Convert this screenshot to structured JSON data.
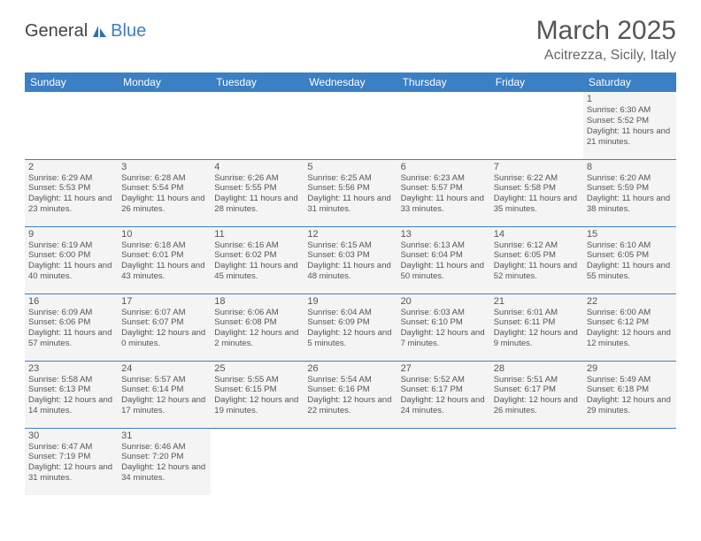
{
  "logo": {
    "text1": "General",
    "text2": "Blue"
  },
  "title": "March 2025",
  "location": "Acitrezza, Sicily, Italy",
  "colors": {
    "header_bg": "#3b7fc4",
    "header_fg": "#ffffff",
    "cell_bg": "#f4f4f4",
    "border": "#3b7fc4",
    "text": "#555555"
  },
  "day_headers": [
    "Sunday",
    "Monday",
    "Tuesday",
    "Wednesday",
    "Thursday",
    "Friday",
    "Saturday"
  ],
  "weeks": [
    [
      null,
      null,
      null,
      null,
      null,
      null,
      {
        "n": "1",
        "sr": "Sunrise: 6:30 AM",
        "ss": "Sunset: 5:52 PM",
        "dl": "Daylight: 11 hours and 21 minutes."
      }
    ],
    [
      {
        "n": "2",
        "sr": "Sunrise: 6:29 AM",
        "ss": "Sunset: 5:53 PM",
        "dl": "Daylight: 11 hours and 23 minutes."
      },
      {
        "n": "3",
        "sr": "Sunrise: 6:28 AM",
        "ss": "Sunset: 5:54 PM",
        "dl": "Daylight: 11 hours and 26 minutes."
      },
      {
        "n": "4",
        "sr": "Sunrise: 6:26 AM",
        "ss": "Sunset: 5:55 PM",
        "dl": "Daylight: 11 hours and 28 minutes."
      },
      {
        "n": "5",
        "sr": "Sunrise: 6:25 AM",
        "ss": "Sunset: 5:56 PM",
        "dl": "Daylight: 11 hours and 31 minutes."
      },
      {
        "n": "6",
        "sr": "Sunrise: 6:23 AM",
        "ss": "Sunset: 5:57 PM",
        "dl": "Daylight: 11 hours and 33 minutes."
      },
      {
        "n": "7",
        "sr": "Sunrise: 6:22 AM",
        "ss": "Sunset: 5:58 PM",
        "dl": "Daylight: 11 hours and 35 minutes."
      },
      {
        "n": "8",
        "sr": "Sunrise: 6:20 AM",
        "ss": "Sunset: 5:59 PM",
        "dl": "Daylight: 11 hours and 38 minutes."
      }
    ],
    [
      {
        "n": "9",
        "sr": "Sunrise: 6:19 AM",
        "ss": "Sunset: 6:00 PM",
        "dl": "Daylight: 11 hours and 40 minutes."
      },
      {
        "n": "10",
        "sr": "Sunrise: 6:18 AM",
        "ss": "Sunset: 6:01 PM",
        "dl": "Daylight: 11 hours and 43 minutes."
      },
      {
        "n": "11",
        "sr": "Sunrise: 6:16 AM",
        "ss": "Sunset: 6:02 PM",
        "dl": "Daylight: 11 hours and 45 minutes."
      },
      {
        "n": "12",
        "sr": "Sunrise: 6:15 AM",
        "ss": "Sunset: 6:03 PM",
        "dl": "Daylight: 11 hours and 48 minutes."
      },
      {
        "n": "13",
        "sr": "Sunrise: 6:13 AM",
        "ss": "Sunset: 6:04 PM",
        "dl": "Daylight: 11 hours and 50 minutes."
      },
      {
        "n": "14",
        "sr": "Sunrise: 6:12 AM",
        "ss": "Sunset: 6:05 PM",
        "dl": "Daylight: 11 hours and 52 minutes."
      },
      {
        "n": "15",
        "sr": "Sunrise: 6:10 AM",
        "ss": "Sunset: 6:05 PM",
        "dl": "Daylight: 11 hours and 55 minutes."
      }
    ],
    [
      {
        "n": "16",
        "sr": "Sunrise: 6:09 AM",
        "ss": "Sunset: 6:06 PM",
        "dl": "Daylight: 11 hours and 57 minutes."
      },
      {
        "n": "17",
        "sr": "Sunrise: 6:07 AM",
        "ss": "Sunset: 6:07 PM",
        "dl": "Daylight: 12 hours and 0 minutes."
      },
      {
        "n": "18",
        "sr": "Sunrise: 6:06 AM",
        "ss": "Sunset: 6:08 PM",
        "dl": "Daylight: 12 hours and 2 minutes."
      },
      {
        "n": "19",
        "sr": "Sunrise: 6:04 AM",
        "ss": "Sunset: 6:09 PM",
        "dl": "Daylight: 12 hours and 5 minutes."
      },
      {
        "n": "20",
        "sr": "Sunrise: 6:03 AM",
        "ss": "Sunset: 6:10 PM",
        "dl": "Daylight: 12 hours and 7 minutes."
      },
      {
        "n": "21",
        "sr": "Sunrise: 6:01 AM",
        "ss": "Sunset: 6:11 PM",
        "dl": "Daylight: 12 hours and 9 minutes."
      },
      {
        "n": "22",
        "sr": "Sunrise: 6:00 AM",
        "ss": "Sunset: 6:12 PM",
        "dl": "Daylight: 12 hours and 12 minutes."
      }
    ],
    [
      {
        "n": "23",
        "sr": "Sunrise: 5:58 AM",
        "ss": "Sunset: 6:13 PM",
        "dl": "Daylight: 12 hours and 14 minutes."
      },
      {
        "n": "24",
        "sr": "Sunrise: 5:57 AM",
        "ss": "Sunset: 6:14 PM",
        "dl": "Daylight: 12 hours and 17 minutes."
      },
      {
        "n": "25",
        "sr": "Sunrise: 5:55 AM",
        "ss": "Sunset: 6:15 PM",
        "dl": "Daylight: 12 hours and 19 minutes."
      },
      {
        "n": "26",
        "sr": "Sunrise: 5:54 AM",
        "ss": "Sunset: 6:16 PM",
        "dl": "Daylight: 12 hours and 22 minutes."
      },
      {
        "n": "27",
        "sr": "Sunrise: 5:52 AM",
        "ss": "Sunset: 6:17 PM",
        "dl": "Daylight: 12 hours and 24 minutes."
      },
      {
        "n": "28",
        "sr": "Sunrise: 5:51 AM",
        "ss": "Sunset: 6:17 PM",
        "dl": "Daylight: 12 hours and 26 minutes."
      },
      {
        "n": "29",
        "sr": "Sunrise: 5:49 AM",
        "ss": "Sunset: 6:18 PM",
        "dl": "Daylight: 12 hours and 29 minutes."
      }
    ],
    [
      {
        "n": "30",
        "sr": "Sunrise: 6:47 AM",
        "ss": "Sunset: 7:19 PM",
        "dl": "Daylight: 12 hours and 31 minutes."
      },
      {
        "n": "31",
        "sr": "Sunrise: 6:46 AM",
        "ss": "Sunset: 7:20 PM",
        "dl": "Daylight: 12 hours and 34 minutes."
      },
      null,
      null,
      null,
      null,
      null
    ]
  ]
}
